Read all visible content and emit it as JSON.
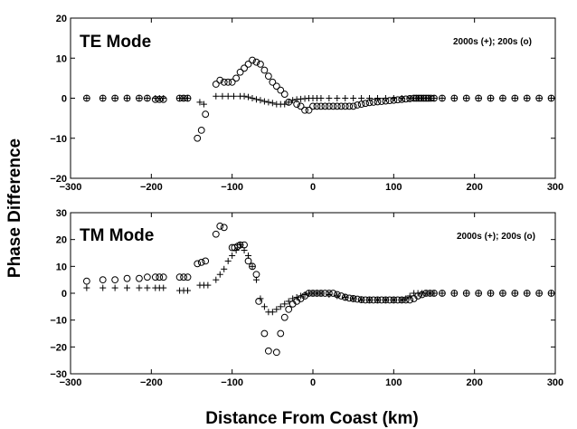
{
  "figure": {
    "ylabel": "Phase Difference",
    "xlabel": "Distance From Coast (km)"
  },
  "chart_data": [
    {
      "type": "scatter",
      "title": "TE Mode",
      "legend_text": "2000s (+);  200s (o)",
      "legend_position": "top-right",
      "xlim": [
        -300,
        300
      ],
      "ylim": [
        -20,
        20
      ],
      "xticks": [
        -300,
        -200,
        -100,
        0,
        100,
        200,
        300
      ],
      "yticks": [
        -20,
        -10,
        0,
        10,
        20
      ],
      "grid": false,
      "series": [
        {
          "name": "2000s",
          "marker": "+",
          "x": [
            -280,
            -260,
            -245,
            -230,
            -215,
            -205,
            -195,
            -190,
            -185,
            -165,
            -160,
            -155,
            -140,
            -135,
            -120,
            -112,
            -105,
            -98,
            -90,
            -85,
            -80,
            -75,
            -70,
            -65,
            -60,
            -55,
            -50,
            -45,
            -40,
            -35,
            -30,
            -25,
            -20,
            -15,
            -10,
            -5,
            0,
            5,
            10,
            20,
            30,
            40,
            50,
            60,
            70,
            80,
            90,
            100,
            110,
            120,
            125,
            130,
            135,
            140,
            145,
            150,
            160,
            175,
            190,
            205,
            220,
            235,
            250,
            265,
            280,
            295
          ],
          "y": [
            0,
            0,
            0,
            0,
            0,
            0,
            0,
            0,
            0,
            0,
            0,
            0,
            -1,
            -1.5,
            0.5,
            0.5,
            0.5,
            0.5,
            0.5,
            0.5,
            0.3,
            0,
            -0.3,
            -0.5,
            -0.8,
            -1,
            -1.2,
            -1.5,
            -1.5,
            -1.5,
            -1,
            -0.5,
            -0.3,
            -0.2,
            -0.1,
            0,
            0,
            0,
            0,
            0,
            0,
            0,
            0,
            0,
            0,
            0,
            0,
            0,
            0,
            0,
            0,
            0,
            0,
            0,
            0,
            0,
            0,
            0,
            0,
            0,
            0,
            0,
            0,
            0,
            0,
            0
          ]
        },
        {
          "name": "200s",
          "marker": "o",
          "x": [
            -280,
            -260,
            -245,
            -230,
            -215,
            -205,
            -195,
            -190,
            -185,
            -165,
            -160,
            -155,
            -143,
            -138,
            -133,
            -120,
            -115,
            -110,
            -105,
            -100,
            -95,
            -90,
            -85,
            -80,
            -75,
            -70,
            -65,
            -60,
            -55,
            -50,
            -45,
            -40,
            -35,
            -30,
            -20,
            -15,
            -10,
            -5,
            0,
            5,
            10,
            15,
            20,
            25,
            30,
            35,
            40,
            45,
            50,
            55,
            60,
            65,
            70,
            75,
            80,
            85,
            90,
            95,
            100,
            105,
            110,
            115,
            120,
            125,
            128,
            131,
            134,
            137,
            140,
            143,
            146,
            150,
            160,
            175,
            190,
            205,
            220,
            235,
            250,
            265,
            280,
            295
          ],
          "y": [
            0,
            0,
            0,
            0,
            0,
            0,
            -0.3,
            -0.3,
            -0.3,
            0,
            0,
            0,
            -10,
            -8,
            -4,
            3.5,
            4.5,
            4,
            4,
            4,
            5,
            6.5,
            7.5,
            8.5,
            9.5,
            9,
            8.5,
            7,
            5.5,
            4,
            3,
            2,
            1,
            -1,
            -1.5,
            -2,
            -3,
            -3,
            -2,
            -2,
            -2,
            -2,
            -2,
            -2,
            -2,
            -2,
            -2,
            -2,
            -2,
            -1.7,
            -1.5,
            -1.3,
            -1.1,
            -1,
            -0.9,
            -0.8,
            -0.7,
            -0.6,
            -0.5,
            -0.4,
            -0.3,
            -0.2,
            -0.1,
            0,
            0,
            0,
            0,
            0,
            0,
            0,
            0,
            0,
            0,
            0,
            0,
            0,
            0,
            0,
            0,
            0,
            0,
            0
          ]
        }
      ]
    },
    {
      "type": "scatter",
      "title": "TM Mode",
      "legend_text": "2000s (+);  200s (o)",
      "legend_position": "top-right",
      "xlim": [
        -300,
        300
      ],
      "ylim": [
        -30,
        30
      ],
      "xticks": [
        -300,
        -200,
        -100,
        0,
        100,
        200,
        300
      ],
      "yticks": [
        -30,
        -20,
        -10,
        0,
        10,
        20,
        30
      ],
      "grid": false,
      "series": [
        {
          "name": "2000s",
          "marker": "+",
          "x": [
            -280,
            -260,
            -245,
            -230,
            -215,
            -205,
            -195,
            -190,
            -185,
            -165,
            -160,
            -155,
            -140,
            -135,
            -130,
            -120,
            -115,
            -110,
            -105,
            -100,
            -95,
            -90,
            -85,
            -80,
            -75,
            -70,
            -65,
            -60,
            -55,
            -50,
            -45,
            -40,
            -35,
            -30,
            -25,
            -20,
            -15,
            -10,
            -5,
            0,
            5,
            10,
            20,
            30,
            40,
            50,
            60,
            70,
            80,
            90,
            100,
            110,
            115,
            120,
            125,
            130,
            135,
            140,
            145,
            150,
            160,
            175,
            190,
            205,
            220,
            235,
            250,
            265,
            280,
            295
          ],
          "y": [
            2,
            2,
            2,
            2,
            2,
            2,
            2,
            2,
            2,
            1,
            1,
            1,
            3,
            3,
            3,
            5,
            7,
            9,
            12,
            14,
            16,
            18,
            16,
            14,
            10,
            5,
            -2,
            -5,
            -7,
            -7,
            -6,
            -5,
            -4,
            -3,
            -2,
            -1.5,
            -1,
            -0.5,
            0,
            0,
            0,
            0,
            -0.5,
            -1,
            -1.5,
            -2,
            -2.5,
            -2.5,
            -2.5,
            -2.5,
            -2.5,
            -2.5,
            -2,
            -1,
            0,
            0,
            0,
            0,
            0,
            0,
            0,
            0,
            0,
            0,
            0,
            0,
            0,
            0,
            0,
            0
          ]
        },
        {
          "name": "200s",
          "marker": "o",
          "x": [
            -280,
            -260,
            -245,
            -230,
            -215,
            -205,
            -195,
            -190,
            -185,
            -165,
            -160,
            -155,
            -143,
            -138,
            -133,
            -120,
            -115,
            -110,
            -100,
            -97,
            -93,
            -90,
            -85,
            -80,
            -75,
            -70,
            -67,
            -60,
            -55,
            -45,
            -40,
            -35,
            -30,
            -25,
            -20,
            -15,
            -10,
            -5,
            0,
            5,
            10,
            15,
            20,
            25,
            30,
            35,
            40,
            45,
            50,
            55,
            60,
            65,
            70,
            75,
            80,
            85,
            90,
            95,
            100,
            105,
            110,
            115,
            120,
            125,
            130,
            135,
            140,
            145,
            150,
            160,
            175,
            190,
            205,
            220,
            235,
            250,
            265,
            280,
            295
          ],
          "y": [
            4.5,
            5,
            5,
            5.5,
            5.5,
            6,
            6,
            6,
            6,
            6,
            6,
            6,
            11,
            11.5,
            12,
            22,
            25,
            24.5,
            17,
            17,
            17.5,
            18,
            18,
            12,
            10,
            7,
            -3,
            -15,
            -21.5,
            -22,
            -15,
            -9,
            -6,
            -4,
            -3,
            -2,
            -1,
            0,
            0,
            0,
            0,
            0,
            0,
            0,
            -0.5,
            -1,
            -1.5,
            -1.8,
            -2,
            -2.2,
            -2.4,
            -2.5,
            -2.5,
            -2.5,
            -2.5,
            -2.5,
            -2.5,
            -2.5,
            -2.5,
            -2.5,
            -2.5,
            -2.5,
            -2.5,
            -2,
            -1,
            -0.5,
            0,
            0,
            0,
            0,
            0,
            0,
            0,
            0,
            0,
            0,
            0,
            0,
            0
          ]
        }
      ]
    }
  ]
}
